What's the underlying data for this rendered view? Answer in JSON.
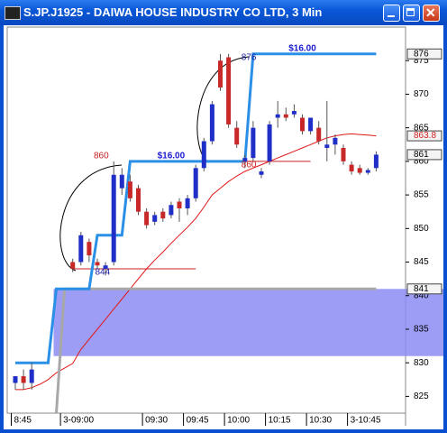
{
  "window": {
    "title": "S.JP.J1925 - DAIWA HOUSE INDUSTRY CO LTD, 3 Min"
  },
  "chart_data": {
    "type": "candlestick",
    "categories": [
      "8:45",
      null,
      null,
      null,
      null,
      null,
      "3-09:00",
      null,
      null,
      null,
      null,
      null,
      null,
      null,
      null,
      null,
      "09:30",
      null,
      null,
      null,
      null,
      "09:45",
      null,
      null,
      null,
      null,
      "10:00",
      null,
      null,
      null,
      null,
      "10:15",
      null,
      null,
      null,
      null,
      "10:30",
      null,
      null,
      null,
      null,
      "3-10:45",
      null,
      null,
      null
    ],
    "open": [
      827,
      828,
      827,
      null,
      null,
      null,
      null,
      845,
      845,
      848,
      845,
      844,
      845,
      856,
      857,
      856,
      852.5,
      851,
      852.5,
      852,
      854,
      853,
      854.5,
      859,
      863,
      875,
      875.5,
      865,
      860,
      860.5,
      858,
      860,
      866.5,
      867,
      867,
      866.5,
      864.5,
      865,
      862,
      862.5,
      862,
      859.5,
      859,
      858.3,
      859
    ],
    "high": [
      828,
      829,
      830,
      null,
      null,
      null,
      null,
      845.5,
      849.5,
      848.5,
      845.5,
      845,
      860,
      859,
      858,
      856.5,
      853,
      852.5,
      853,
      854,
      854.5,
      855,
      859.5,
      863.5,
      869,
      876,
      876,
      866,
      861,
      866,
      859,
      866,
      869,
      868,
      868.5,
      867,
      866.5,
      866,
      869,
      864,
      862.5,
      860,
      859.5,
      859,
      861.5
    ],
    "low": [
      826,
      826,
      826,
      null,
      null,
      null,
      null,
      843.5,
      844.5,
      845,
      844,
      843,
      844.5,
      855,
      854,
      852,
      850,
      850.5,
      851,
      851.5,
      851,
      852,
      854,
      858.5,
      862.5,
      870.5,
      865,
      862,
      859,
      860,
      857.5,
      859.5,
      865,
      866,
      866.5,
      864,
      864,
      862.5,
      860,
      861,
      859.5,
      858,
      858,
      858,
      858.5
    ],
    "close": [
      828,
      827,
      829,
      null,
      null,
      null,
      null,
      844,
      849,
      846,
      844.5,
      844.5,
      858,
      858,
      854.5,
      852.5,
      850.5,
      852,
      851.5,
      853.5,
      853,
      854.5,
      859,
      863,
      868.5,
      871,
      865.5,
      862.5,
      860.5,
      865,
      858.5,
      865.5,
      867,
      866.5,
      867.5,
      864.5,
      866.5,
      863,
      862.5,
      863.5,
      860,
      858.5,
      858.3,
      858.7,
      861
    ],
    "up_color": "#1f2fc8",
    "down_color": "#c82828",
    "lines": [
      {
        "color": "#e01818",
        "width": 1,
        "values": [
          826,
          826,
          826.3,
          826.8,
          827.5,
          828.5,
          829.2,
          829.9,
          832,
          833.5,
          835,
          836.5,
          838,
          839.5,
          841,
          842.5,
          844,
          845.3,
          846.5,
          847.8,
          849,
          850.2,
          851.5,
          853.2,
          855,
          856,
          857,
          857.8,
          858.5,
          859,
          859.5,
          860,
          860.5,
          861,
          861.5,
          862,
          862.5,
          863,
          863.5,
          863.8,
          864,
          864.1,
          864,
          863.9,
          863.8
        ]
      },
      {
        "color": "#a8a8a8",
        "width": 3,
        "values": [
          null,
          null,
          null,
          null,
          null,
          822.5,
          841,
          841,
          841,
          841,
          841,
          841,
          841,
          841,
          841,
          841,
          841,
          841,
          841,
          841,
          841,
          841,
          841,
          841,
          841,
          841,
          841,
          841,
          841,
          841,
          841,
          841,
          841,
          841,
          841,
          841,
          841,
          841,
          841,
          841,
          841,
          841,
          841,
          841,
          841
        ]
      },
      {
        "color": "#2a8fe6",
        "width": 3,
        "values": [
          830,
          830,
          830,
          830,
          830,
          841,
          841,
          841,
          841,
          841,
          849,
          849,
          849,
          849,
          860,
          860,
          860,
          860,
          860,
          860,
          860,
          860,
          860,
          860,
          860,
          860,
          860,
          860,
          860,
          876,
          876,
          876,
          876,
          876,
          876,
          876,
          876,
          876,
          876,
          876,
          876,
          876,
          876,
          876,
          876
        ]
      }
    ],
    "band": [
      831,
      841
    ],
    "band_color": "#8c8cf4",
    "levels": [
      844,
      860,
      876,
      860
    ],
    "level_lines": [
      844,
      860
    ],
    "annotations": [
      "$16.00",
      "$16.00"
    ],
    "axis_markers": [
      876,
      863.8,
      861,
      841
    ],
    "axis_marker_colors": [
      "#000000",
      "#d02020",
      "#000000",
      "#000000"
    ],
    "ylim": [
      822.5,
      880
    ],
    "yticks": [
      825,
      830,
      835,
      840,
      845,
      850,
      855,
      860,
      865,
      870,
      875
    ],
    "grid": false
  }
}
